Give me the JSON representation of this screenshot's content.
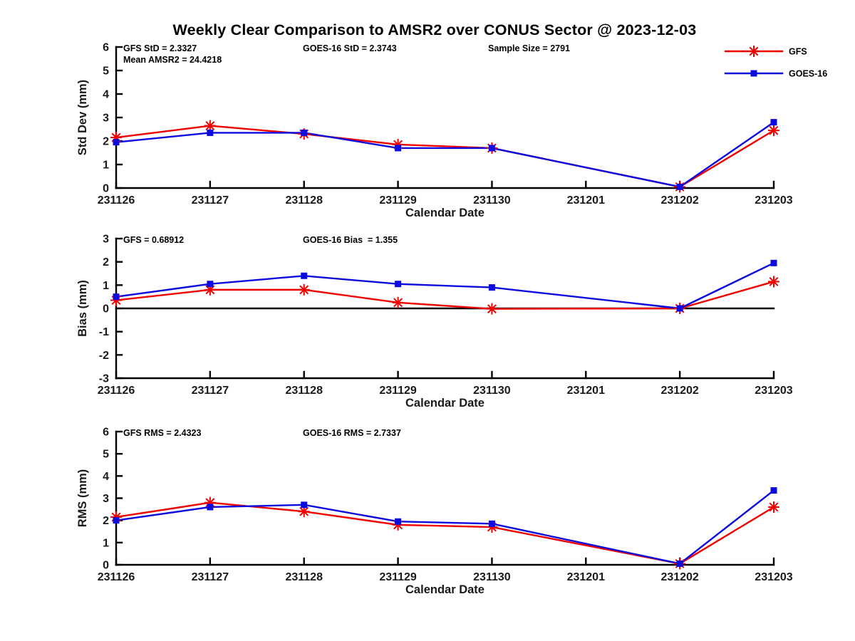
{
  "page": {
    "title": "Weekly Clear Comparison to AMSR2 over CONUS Sector @ 2023-12-03"
  },
  "colors": {
    "gfs": "#f10000",
    "goes16": "#0b0bdf",
    "axis": "#000000",
    "zero_line": "#000000",
    "text": "#1a1a1a",
    "background": "#ffffff"
  },
  "legend": {
    "position": "top-right",
    "entries": [
      {
        "label": "GFS",
        "color_key": "gfs",
        "marker": "asterisk"
      },
      {
        "label": "GOES-16",
        "color_key": "goes16",
        "marker": "square"
      }
    ]
  },
  "chart_data": [
    {
      "id": "stddev",
      "type": "line",
      "xlabel": "Calendar Date",
      "ylabel": "Std Dev (mm)",
      "ylim": [
        0,
        6
      ],
      "ytick_step": 1,
      "grid": false,
      "zero_line": false,
      "categories": [
        "231126",
        "231127",
        "231128",
        "231129",
        "231130",
        "231201",
        "231202",
        "231203"
      ],
      "series": [
        {
          "name": "GFS",
          "marker": "asterisk",
          "color_key": "gfs",
          "values": [
            2.15,
            2.65,
            2.3,
            1.85,
            1.7,
            null,
            0.05,
            2.45
          ]
        },
        {
          "name": "GOES-16",
          "marker": "square",
          "color_key": "goes16",
          "values": [
            1.95,
            2.35,
            2.35,
            1.7,
            1.7,
            null,
            0.05,
            2.8
          ]
        }
      ],
      "annotations": [
        {
          "text": "GFS StD = 2.3327",
          "col": 0,
          "row": 0
        },
        {
          "text": "Mean AMSR2 = 24.4218",
          "col": 0,
          "row": 1
        },
        {
          "text": "GOES-16 StD = 2.3743",
          "col": 1,
          "row": 0
        },
        {
          "text": "Sample Size = 2791",
          "col": 2,
          "row": 0
        }
      ]
    },
    {
      "id": "bias",
      "type": "line",
      "xlabel": "Calendar Date",
      "ylabel": "Bias (mm)",
      "ylim": [
        -3,
        3
      ],
      "ytick_step": 1,
      "grid": false,
      "zero_line": true,
      "categories": [
        "231126",
        "231127",
        "231128",
        "231129",
        "231130",
        "231201",
        "231202",
        "231203"
      ],
      "series": [
        {
          "name": "GFS",
          "marker": "asterisk",
          "color_key": "gfs",
          "values": [
            0.35,
            0.8,
            0.8,
            0.25,
            -0.02,
            null,
            0.0,
            1.15
          ]
        },
        {
          "name": "GOES-16",
          "marker": "square",
          "color_key": "goes16",
          "values": [
            0.5,
            1.05,
            1.4,
            1.05,
            0.9,
            null,
            0.0,
            1.95
          ]
        }
      ],
      "annotations": [
        {
          "text": "GFS = 0.68912",
          "col": 0,
          "row": 0
        },
        {
          "text": "GOES-16 Bias  = 1.355",
          "col": 1,
          "row": 0
        }
      ]
    },
    {
      "id": "rms",
      "type": "line",
      "xlabel": "Calendar Date",
      "ylabel": "RMS (mm)",
      "ylim": [
        0,
        6
      ],
      "ytick_step": 1,
      "grid": false,
      "zero_line": false,
      "categories": [
        "231126",
        "231127",
        "231128",
        "231129",
        "231130",
        "231201",
        "231202",
        "231203"
      ],
      "series": [
        {
          "name": "GFS",
          "marker": "asterisk",
          "color_key": "gfs",
          "values": [
            2.15,
            2.8,
            2.4,
            1.8,
            1.7,
            null,
            0.05,
            2.6
          ]
        },
        {
          "name": "GOES-16",
          "marker": "square",
          "color_key": "goes16",
          "values": [
            2.0,
            2.6,
            2.7,
            1.95,
            1.85,
            null,
            0.05,
            3.35
          ]
        }
      ],
      "annotations": [
        {
          "text": "GFS RMS = 2.4323",
          "col": 0,
          "row": 0
        },
        {
          "text": "GOES-16 RMS = 2.7337",
          "col": 1,
          "row": 0
        }
      ]
    }
  ]
}
